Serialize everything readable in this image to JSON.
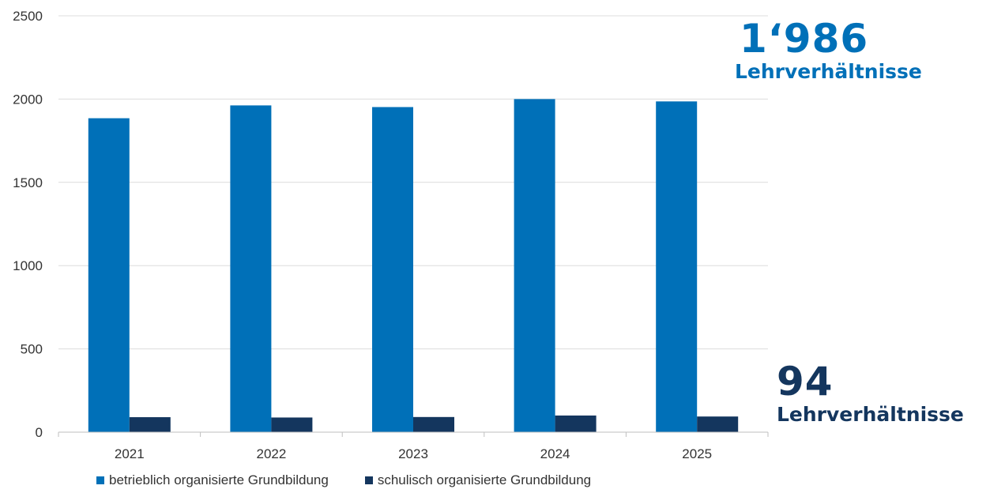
{
  "chart_data": {
    "type": "bar",
    "categories": [
      "2021",
      "2022",
      "2023",
      "2024",
      "2025"
    ],
    "series": [
      {
        "name": "betrieblich organisierte Grundbildung",
        "color": "#0070b8",
        "values": [
          1885,
          1962,
          1952,
          2000,
          1986
        ]
      },
      {
        "name": "schulisch organisierte Grundbildung",
        "color": "#14365e",
        "values": [
          90,
          88,
          91,
          100,
          94
        ]
      }
    ],
    "ylim": [
      0,
      2500
    ],
    "yticks": [
      "0",
      "500",
      "1000",
      "1500",
      "2000",
      "2500"
    ],
    "grid": true,
    "legend_position": "bottom"
  },
  "callouts": {
    "top": {
      "value": "1‘986",
      "label": "Lehrverhältnisse"
    },
    "bottom": {
      "value": "94",
      "label": "Lehrverhältnisse"
    }
  }
}
